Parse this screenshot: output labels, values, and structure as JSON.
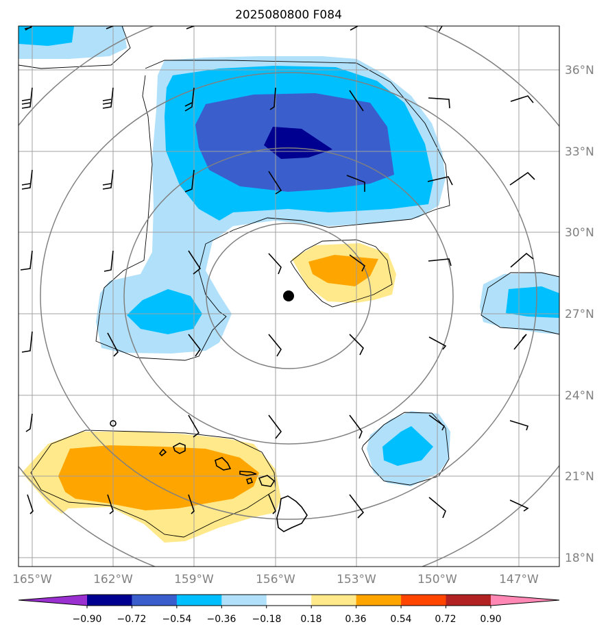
{
  "title": "2025080800 F084",
  "map": {
    "lat_labels": [
      "36°N",
      "33°N",
      "30°N",
      "27°N",
      "24°N",
      "21°N",
      "18°N"
    ],
    "lon_labels": [
      "165°W",
      "162°W",
      "159°W",
      "156°W",
      "153°W",
      "150°W",
      "147°W"
    ],
    "center_marker": "storm-center-dot",
    "colors": {
      "gridline": "#a0a0a0",
      "range_ring": "#808080",
      "coastline": "#000000",
      "contour_line": "#000000",
      "wind_barb": "#000000"
    }
  },
  "colorbar": {
    "tick_labels": [
      "−0.90",
      "−0.72",
      "−0.54",
      "−0.36",
      "−0.18",
      "0.18",
      "0.36",
      "0.54",
      "0.72",
      "0.90"
    ],
    "colors": [
      "#9b30d0",
      "#000090",
      "#3a5fcd",
      "#00bfff",
      "#b0e0fa",
      "#ffffff",
      "#ffe98a",
      "#ffa500",
      "#ff4500",
      "#b22222",
      "#ff88b4"
    ]
  }
}
